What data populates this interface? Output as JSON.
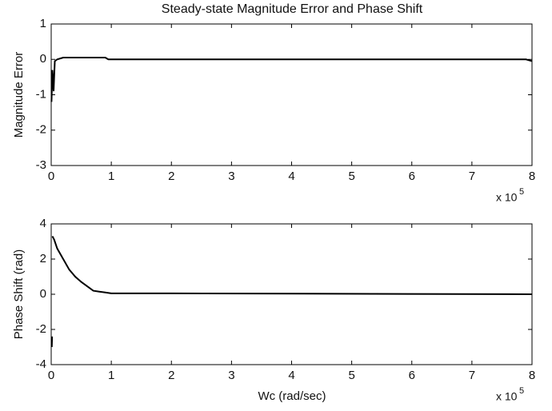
{
  "chart_data": [
    {
      "type": "line",
      "title": "Steady-state Magnitude Error and Phase Shift",
      "y_label": "Magnitude Error",
      "x_multiplier": "x 10",
      "x_exponent": "5",
      "xlim": [
        0,
        8
      ],
      "xticks": [
        0,
        1,
        2,
        3,
        4,
        5,
        6,
        7,
        8
      ],
      "ylim": [
        -3,
        1
      ],
      "yticks": [
        -3,
        -2,
        -1,
        0,
        1
      ],
      "series": [
        {
          "color": "#000000",
          "x": [
            0.005,
            0.02,
            0.04,
            0.06,
            0.1,
            0.2,
            0.9,
            0.95,
            7.9,
            8
          ],
          "values": [
            -1.2,
            -0.3,
            -0.9,
            -0.05,
            0,
            0.05,
            0.05,
            0,
            0,
            -0.05
          ]
        }
      ]
    },
    {
      "type": "line",
      "y_label": "Phase Shift (rad)",
      "x_label": "Wc (rad/sec)",
      "x_multiplier": "x 10",
      "x_exponent": "5",
      "xlim": [
        0,
        8
      ],
      "xticks": [
        0,
        1,
        2,
        3,
        4,
        5,
        6,
        7,
        8
      ],
      "ylim": [
        -4,
        4
      ],
      "yticks": [
        -4,
        -2,
        0,
        2,
        4
      ],
      "series": [
        {
          "color": "#000000",
          "x": [
            0.01,
            0.015,
            0.018,
            0.02,
            0.05,
            0.1,
            0.2,
            0.3,
            0.4,
            0.5,
            0.6,
            0.7,
            0.8,
            0.9,
            1.0,
            2,
            8
          ],
          "values": [
            -3,
            -2.4,
            null,
            3.3,
            3.1,
            2.6,
            2.0,
            1.4,
            1.0,
            0.7,
            0.45,
            0.2,
            0.15,
            0.1,
            0.05,
            0.05,
            0
          ]
        }
      ]
    }
  ]
}
